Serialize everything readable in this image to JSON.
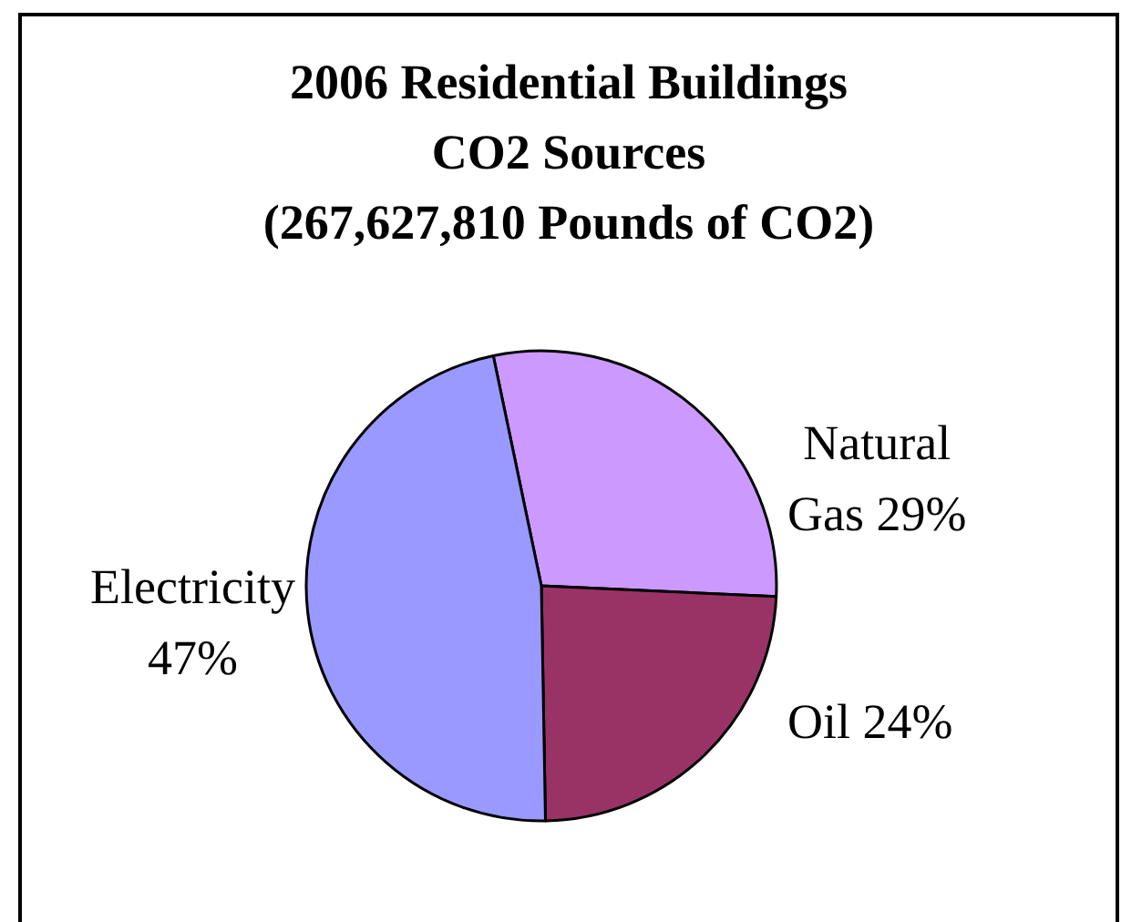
{
  "chart_data": {
    "type": "pie",
    "title": "2006 Residential Buildings\nCO2 Sources\n(267,627,810 Pounds of CO2)",
    "categories": [
      "Natural Gas",
      "Oil",
      "Electricity"
    ],
    "values": [
      29,
      24,
      47
    ],
    "colors": [
      "#cc99ff",
      "#993366",
      "#9999ff"
    ],
    "value_labels": [
      "29%",
      "24%",
      "47%"
    ]
  }
}
